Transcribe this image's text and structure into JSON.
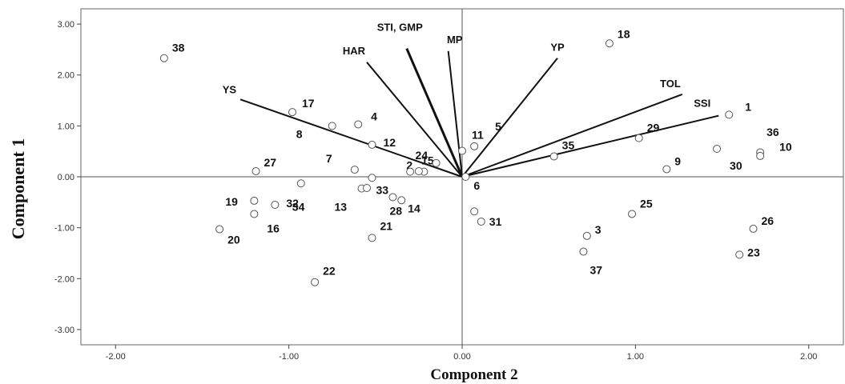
{
  "chart_data": {
    "type": "scatter",
    "xlabel": "Component 2",
    "ylabel": "Component 1",
    "xlim": [
      -2.2,
      2.2
    ],
    "ylim": [
      -3.3,
      3.3
    ],
    "x_ticks": [
      -2.0,
      -1.0,
      0.0,
      1.0,
      2.0
    ],
    "y_ticks": [
      -3.0,
      -2.0,
      -1.0,
      0.0,
      1.0,
      2.0,
      3.0
    ],
    "x_tick_labels": [
      "-2.00",
      "-1.00",
      "0.00",
      "1.00",
      "2.00"
    ],
    "y_tick_labels": [
      "-3.00",
      "-2.00",
      "-1.00",
      "0.00",
      "1.00",
      "2.00",
      "3.00"
    ],
    "grid": false,
    "reference_lines": [
      {
        "axis": "x",
        "value": 0
      },
      {
        "axis": "y",
        "value": 0
      }
    ],
    "points": [
      {
        "label": "1",
        "x": 1.54,
        "y": 1.22
      },
      {
        "label": "2",
        "x": -0.22,
        "y": 0.1
      },
      {
        "label": "3",
        "x": 0.72,
        "y": -1.16
      },
      {
        "label": "4",
        "x": -0.6,
        "y": 1.03
      },
      {
        "label": "5",
        "x": 0.07,
        "y": 0.6
      },
      {
        "label": "6",
        "x": 0.02,
        "y": 0.0
      },
      {
        "label": "7",
        "x": -0.62,
        "y": 0.14
      },
      {
        "label": "8",
        "x": -0.75,
        "y": 1.0
      },
      {
        "label": "9",
        "x": 1.18,
        "y": 0.15
      },
      {
        "label": "10",
        "x": 1.72,
        "y": 0.48
      },
      {
        "label": "11",
        "x": 0.0,
        "y": 0.51
      },
      {
        "label": "12",
        "x": -0.52,
        "y": 0.63
      },
      {
        "label": "13",
        "x": -0.58,
        "y": -0.23
      },
      {
        "label": "14",
        "x": -0.35,
        "y": -0.46
      },
      {
        "label": "15",
        "x": -0.3,
        "y": 0.1
      },
      {
        "label": "16",
        "x": -1.2,
        "y": -0.73
      },
      {
        "label": "17",
        "x": -0.98,
        "y": 1.27
      },
      {
        "label": "18",
        "x": 0.85,
        "y": 2.62
      },
      {
        "label": "19",
        "x": -1.2,
        "y": -0.47
      },
      {
        "label": "20",
        "x": -1.4,
        "y": -1.03
      },
      {
        "label": "21",
        "x": -0.52,
        "y": -1.2
      },
      {
        "label": "22",
        "x": -0.85,
        "y": -2.07
      },
      {
        "label": "23",
        "x": 1.6,
        "y": -1.53
      },
      {
        "label": "24",
        "x": -0.15,
        "y": 0.27
      },
      {
        "label": "25",
        "x": 0.98,
        "y": -0.73
      },
      {
        "label": "26",
        "x": 1.68,
        "y": -1.02
      },
      {
        "label": "27",
        "x": -1.19,
        "y": 0.11
      },
      {
        "label": "28",
        "x": -0.4,
        "y": -0.4
      },
      {
        "label": "29",
        "x": 1.02,
        "y": 0.76
      },
      {
        "label": "30",
        "x": 1.47,
        "y": 0.55
      },
      {
        "label": "31",
        "x": 0.11,
        "y": -0.88
      },
      {
        "label": "32",
        "x": -1.08,
        "y": -0.55
      },
      {
        "label": "33",
        "x": -0.52,
        "y": -0.02
      },
      {
        "label": "34",
        "x": -0.93,
        "y": -0.13
      },
      {
        "label": "35",
        "x": 0.53,
        "y": 0.4
      },
      {
        "label": "36",
        "x": 1.72,
        "y": 0.41
      },
      {
        "label": "37",
        "x": 0.7,
        "y": -1.47
      },
      {
        "label": "38",
        "x": -1.72,
        "y": 2.33
      },
      {
        "label": "",
        "x": -0.55,
        "y": -0.22
      },
      {
        "label": "",
        "x": -0.25,
        "y": 0.11
      },
      {
        "label": "",
        "x": 0.07,
        "y": -0.68
      }
    ],
    "vectors": [
      {
        "label": "YS",
        "x": -1.28,
        "y": 1.52
      },
      {
        "label": "HAR",
        "x": -0.55,
        "y": 2.25
      },
      {
        "label": "STI, GMP",
        "x": -0.32,
        "y": 2.52
      },
      {
        "label": "MP",
        "x": -0.08,
        "y": 2.47
      },
      {
        "label": "YP",
        "x": 0.55,
        "y": 2.33
      },
      {
        "label": "TOL",
        "x": 1.27,
        "y": 1.62
      },
      {
        "label": "SSI",
        "x": 1.48,
        "y": 1.2
      }
    ]
  }
}
